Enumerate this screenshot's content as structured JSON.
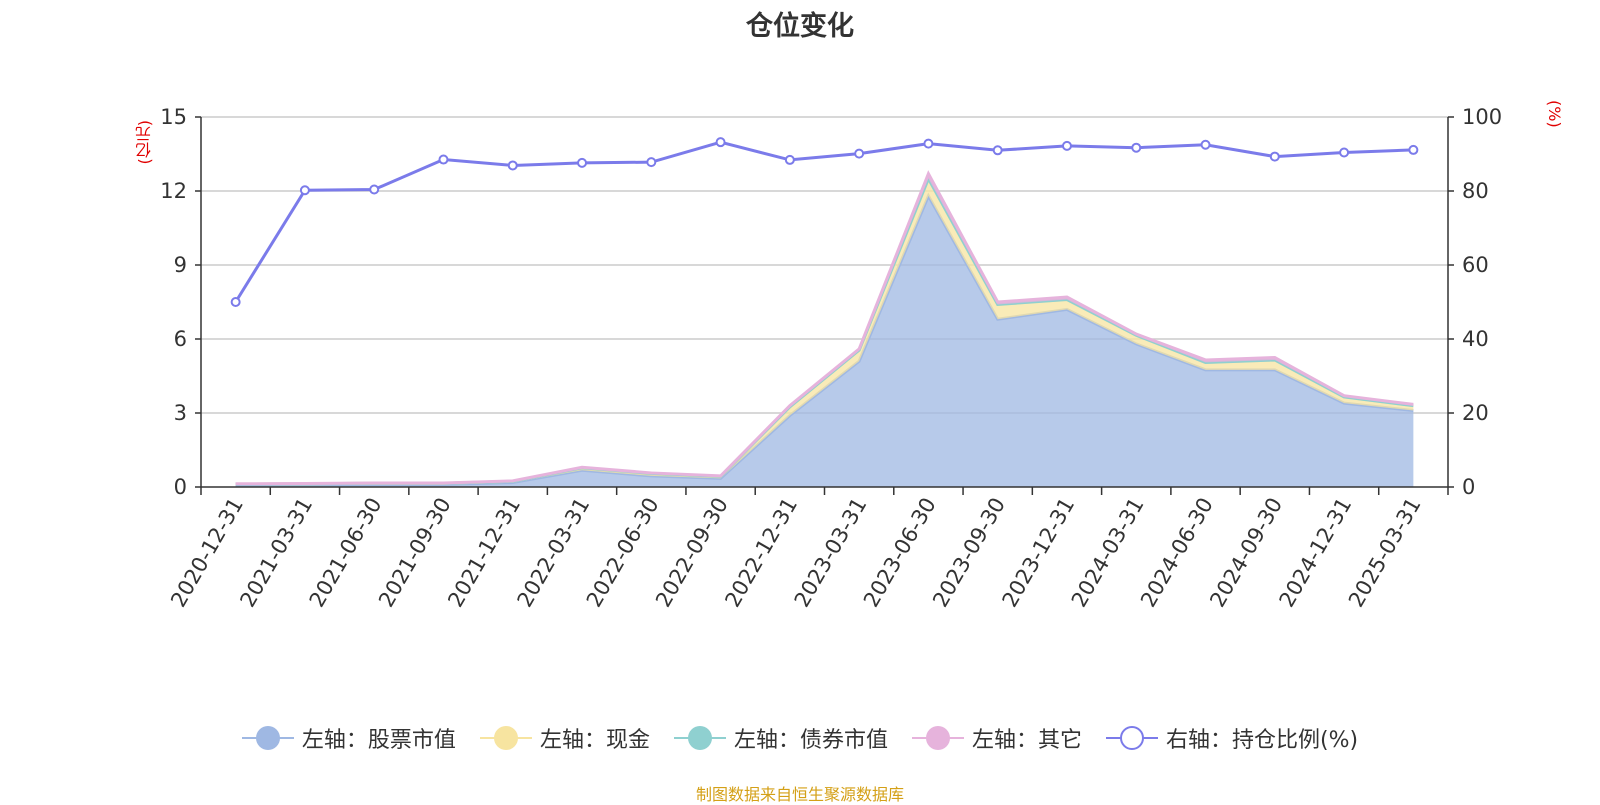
{
  "title": "仓位变化",
  "units": {
    "left": "(亿元)",
    "right": "(%)"
  },
  "source": "制图数据来自恒生聚源数据库",
  "legend": [
    {
      "label": "左轴：股票市值",
      "color": "#9fb8e3",
      "hollow": false
    },
    {
      "label": "左轴：现金",
      "color": "#f7e4a0",
      "hollow": false
    },
    {
      "label": "左轴：债券市值",
      "color": "#8fd0d0",
      "hollow": false
    },
    {
      "label": "左轴：其它",
      "color": "#e6b3dc",
      "hollow": false
    },
    {
      "label": "右轴：持仓比例(%)",
      "color": "#7b7bea",
      "hollow": true
    }
  ],
  "chart_data": {
    "type": "area",
    "categories": [
      "2020-12-31",
      "2021-03-31",
      "2021-06-30",
      "2021-09-30",
      "2021-12-31",
      "2022-03-31",
      "2022-06-30",
      "2022-09-30",
      "2022-12-31",
      "2023-03-31",
      "2023-06-30",
      "2023-09-30",
      "2023-12-31",
      "2024-03-31",
      "2024-06-30",
      "2024-09-30",
      "2024-12-31",
      "2025-03-31"
    ],
    "left_axis": {
      "min": 0,
      "max": 15,
      "ticks": [
        0,
        3,
        6,
        9,
        12,
        15
      ]
    },
    "right_axis": {
      "min": 0,
      "max": 100,
      "ticks": [
        0,
        20,
        40,
        60,
        80,
        100
      ]
    },
    "stacked_series": [
      {
        "name": "左轴：股票市值",
        "color": "#9fb8e3",
        "values": [
          0.08,
          0.09,
          0.1,
          0.1,
          0.18,
          0.68,
          0.45,
          0.35,
          2.9,
          5.1,
          11.8,
          6.8,
          7.2,
          5.8,
          4.75,
          4.75,
          3.4,
          3.1
        ]
      },
      {
        "name": "左轴：现金",
        "color": "#f7e4a0",
        "values": [
          0.04,
          0.04,
          0.05,
          0.05,
          0.05,
          0.1,
          0.1,
          0.08,
          0.35,
          0.45,
          0.7,
          0.6,
          0.4,
          0.35,
          0.3,
          0.4,
          0.25,
          0.2
        ]
      },
      {
        "name": "左轴：债券市值",
        "color": "#8fd0d0",
        "values": [
          0,
          0,
          0,
          0,
          0,
          0,
          0,
          0,
          0,
          0,
          0,
          0,
          0,
          0,
          0,
          0,
          0,
          0
        ]
      },
      {
        "name": "左轴：其它",
        "color": "#e6b3dc",
        "values": [
          0.01,
          0.01,
          0.01,
          0.01,
          0.02,
          0.02,
          0.02,
          0.02,
          0.05,
          0.05,
          0.2,
          0.1,
          0.1,
          0.05,
          0.1,
          0.1,
          0.05,
          0.05
        ]
      }
    ],
    "line_series": {
      "name": "右轴：持仓比例(%)",
      "color": "#7b7bea",
      "values": [
        50,
        80.2,
        80.4,
        88.5,
        86.9,
        87.6,
        87.8,
        93.2,
        88.4,
        90.1,
        92.8,
        91,
        92.2,
        91.7,
        92.5,
        89.3,
        90.4,
        91.1
      ]
    },
    "grid": true
  }
}
